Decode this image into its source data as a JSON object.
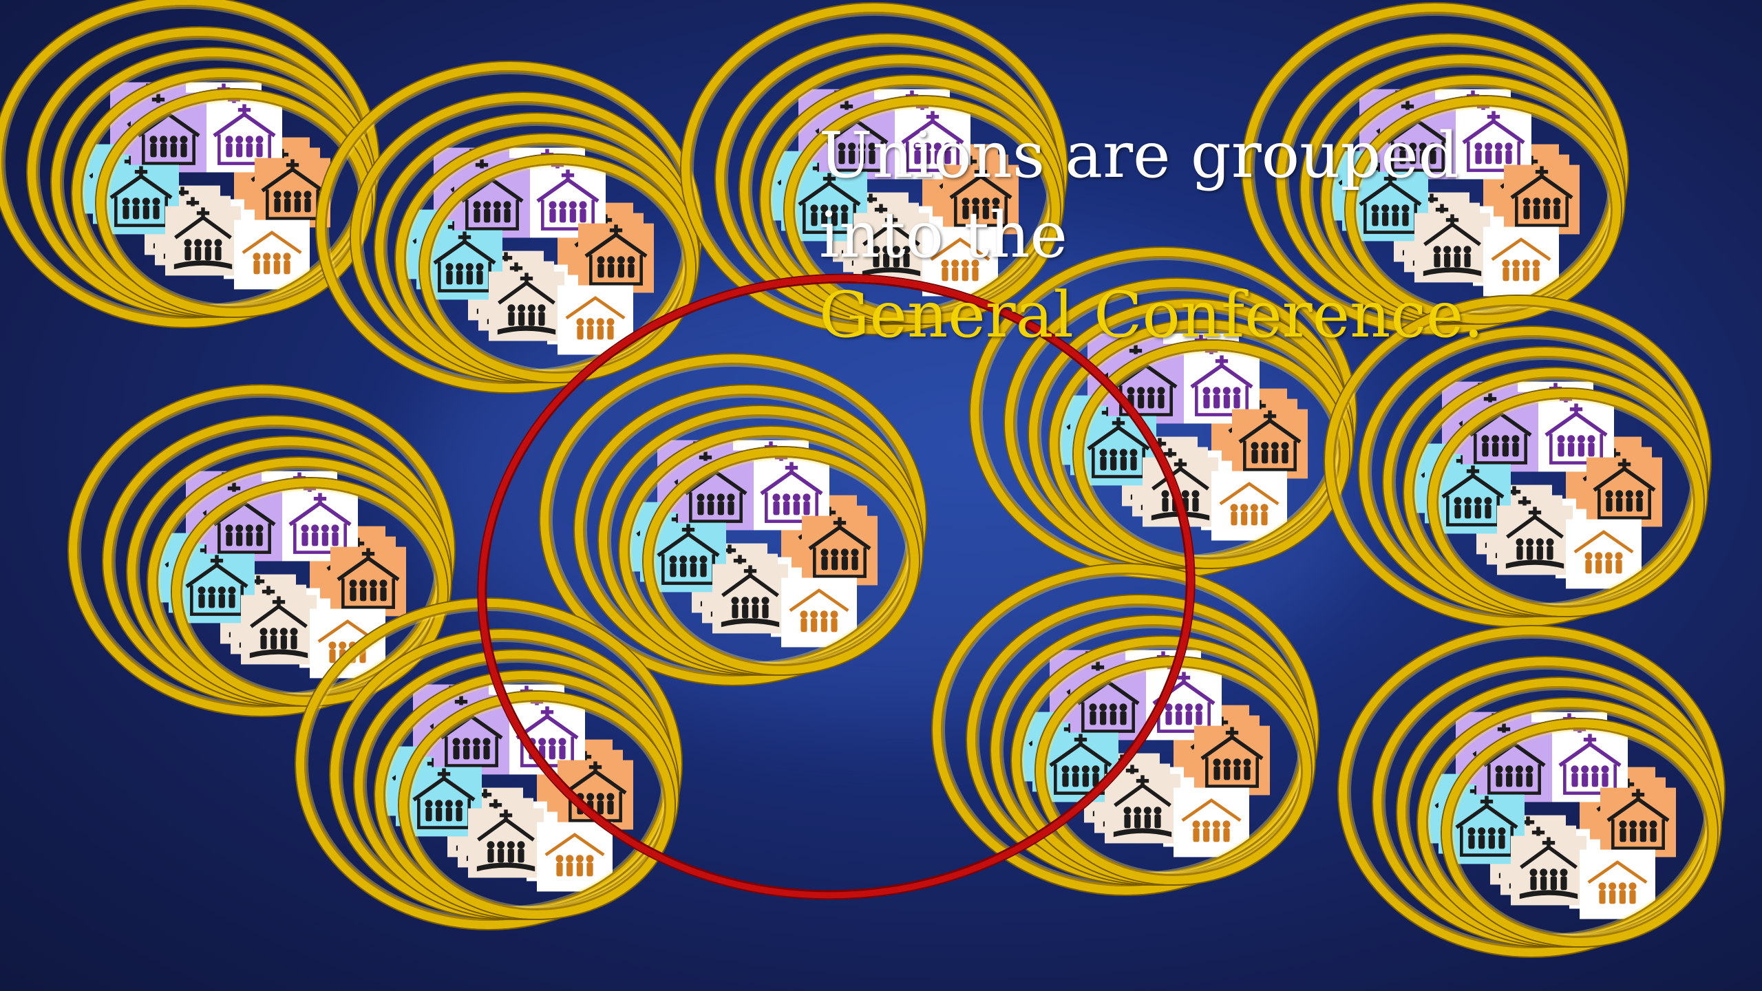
{
  "slide": {
    "caption_line1": "Unions are grouped into the",
    "caption_line2": "General Conference."
  },
  "colors": {
    "background": "#1a2f7a",
    "ring_gold": "#e0b500",
    "highlight_ring": "#c40d0d",
    "caption_text": "#ffffff",
    "caption_highlight": "#f2d200",
    "tile_colors": [
      "#c8a8f0",
      "#ffffff",
      "#8fe2f2",
      "#f5a86a",
      "#f3e6d8",
      "#ffffff"
    ],
    "tile_icon_colors": [
      "#1c1c1c",
      "#6a2a9a",
      "#1c1c1c",
      "#1c1c1c",
      "#1c1c1c",
      "#d07a20"
    ]
  },
  "icons": [
    "church-family-icon",
    "church-family-icon",
    "church-family-icon",
    "church-family-icon",
    "church-bible-family-icon",
    "family-icon"
  ],
  "clusters": [
    {
      "name": "union-1"
    },
    {
      "name": "union-2"
    },
    {
      "name": "union-3"
    },
    {
      "name": "union-4"
    },
    {
      "name": "union-5"
    },
    {
      "name": "union-6"
    },
    {
      "name": "union-7"
    },
    {
      "name": "union-8"
    },
    {
      "name": "union-9"
    },
    {
      "name": "union-10"
    },
    {
      "name": "union-11"
    },
    {
      "name": "union-12"
    }
  ]
}
